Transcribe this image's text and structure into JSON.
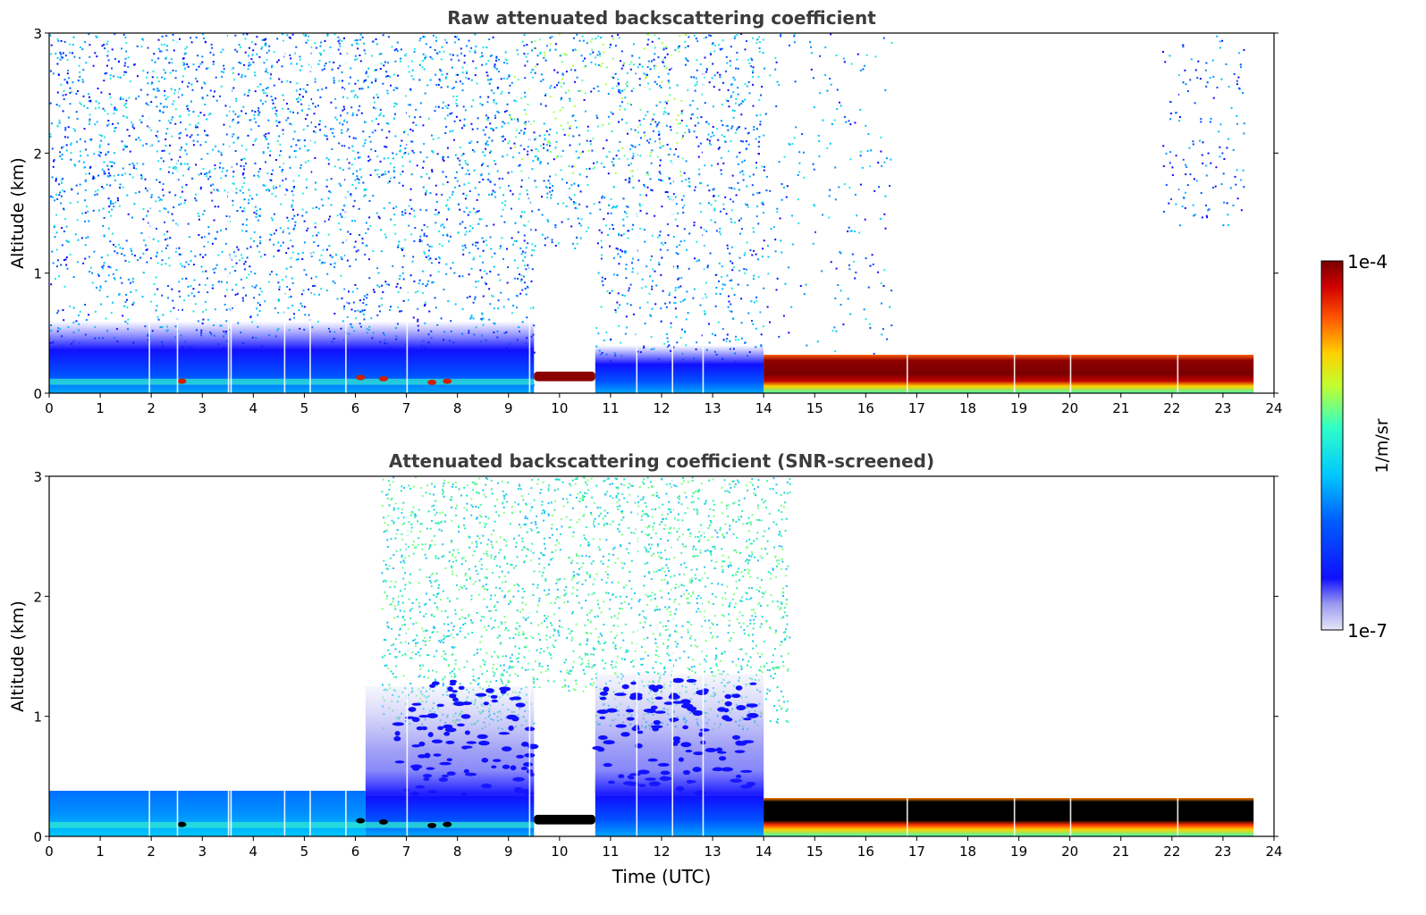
{
  "chart_data": [
    {
      "type": "heatmap",
      "title": "Raw attenuated backscattering coefficient",
      "xlabel": "",
      "ylabel": "Altitude (km)",
      "xlim": [
        0,
        24
      ],
      "ylim": [
        0,
        3
      ],
      "xticks": [
        "0",
        "1",
        "2",
        "3",
        "4",
        "5",
        "6",
        "7",
        "8",
        "9",
        "10",
        "11",
        "12",
        "13",
        "14",
        "15",
        "16",
        "17",
        "18",
        "19",
        "20",
        "21",
        "22",
        "23",
        "24"
      ],
      "yticks": [
        "0",
        "1",
        "2",
        "3"
      ],
      "features": [
        {
          "name": "boundary-layer aerosol",
          "time_start": 0,
          "time_end": 14,
          "top_km": 0.6,
          "level": "1e-6"
        },
        {
          "name": "low cloud",
          "time_start": 9.5,
          "time_end": 10.7,
          "base_km": 0.1,
          "top_km": 0.18,
          "level": "1e-4"
        },
        {
          "name": "cloud layer",
          "time_start": 14,
          "time_end": 23.6,
          "base_km": 0.05,
          "top_km": 0.3,
          "level": "1e-4"
        }
      ]
    },
    {
      "type": "heatmap",
      "title": "Attenuated backscattering coefficient (SNR-screened)",
      "xlabel": "Time (UTC)",
      "ylabel": "Altitude (km)",
      "xlim": [
        0,
        24
      ],
      "ylim": [
        0,
        3
      ],
      "xticks": [
        "0",
        "1",
        "2",
        "3",
        "4",
        "5",
        "6",
        "7",
        "8",
        "9",
        "10",
        "11",
        "12",
        "13",
        "14",
        "15",
        "16",
        "17",
        "18",
        "19",
        "20",
        "21",
        "22",
        "23",
        "24"
      ],
      "yticks": [
        "0",
        "1",
        "2",
        "3"
      ],
      "features": [
        {
          "name": "boundary-layer aerosol",
          "time_start": 0,
          "time_end": 6,
          "top_km": 0.38,
          "level": "1e-6"
        },
        {
          "name": "low cloud",
          "time_start": 9.5,
          "time_end": 10.7,
          "base_km": 0.1,
          "top_km": 0.18,
          "level": "1e-4"
        },
        {
          "name": "cloud layer",
          "time_start": 14,
          "time_end": 23.6,
          "base_km": 0.05,
          "top_km": 0.3,
          "level": "1e-4"
        }
      ]
    }
  ],
  "colorbar": {
    "label": "1/m/sr",
    "max_label": "1e-4",
    "min_label": "1e-7"
  }
}
